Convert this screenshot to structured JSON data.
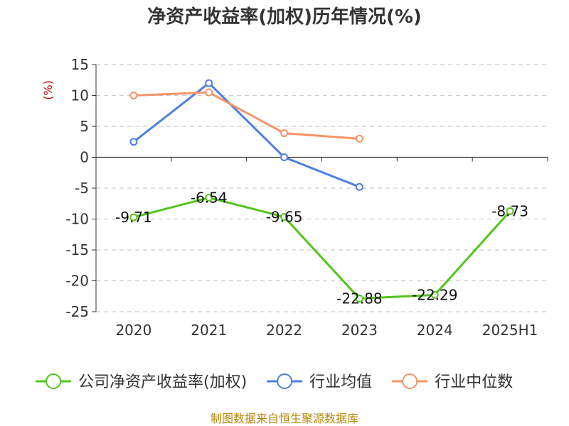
{
  "chart_data": {
    "type": "line",
    "title": "净资产收益率(加权)历年情况(%)",
    "unit_label": "(%)",
    "categories": [
      "2020",
      "2021",
      "2022",
      "2023",
      "2024",
      "2025H1"
    ],
    "yticks": [
      15,
      10,
      5,
      0,
      -5,
      -10,
      -15,
      -20,
      -25
    ],
    "ylim": [
      -25,
      15
    ],
    "grid": true,
    "legend_position": "bottom",
    "series": [
      {
        "name": "公司净资产收益率(加权)",
        "color": "#52c41a",
        "values": [
          -9.71,
          -6.54,
          -9.65,
          -22.88,
          -22.29,
          -8.73
        ],
        "labels": [
          "-9.71",
          "-6.54",
          "-9.65",
          "-22.88",
          "-22.29",
          "-8.73"
        ]
      },
      {
        "name": "行业均值",
        "color": "#4e7fde",
        "values": [
          2.5,
          12.0,
          0.0,
          -4.8,
          null,
          null
        ]
      },
      {
        "name": "行业中位数",
        "color": "#f59467",
        "values": [
          10.0,
          10.5,
          3.9,
          3.0,
          null,
          null
        ]
      }
    ]
  },
  "footer": {
    "source": "制图数据来自恒生聚源数据库"
  }
}
